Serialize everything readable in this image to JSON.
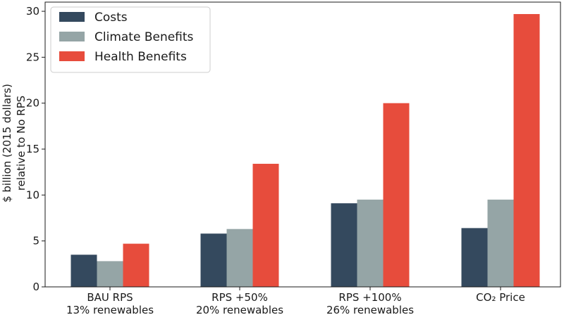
{
  "chart_data": {
    "type": "bar",
    "title": "",
    "xlabel": "",
    "ylabel": [
      "$ billion (2015 dollars)",
      "relative to No RPS"
    ],
    "ylim": [
      0,
      31
    ],
    "yticks": [
      0,
      5,
      10,
      15,
      20,
      25,
      30
    ],
    "grid": false,
    "legend_position": "top-left",
    "categories": [
      [
        "BAU RPS",
        "13% renewables"
      ],
      [
        "RPS +50%",
        "20% renewables"
      ],
      [
        "RPS +100%",
        "26% renewables"
      ],
      [
        "CO₂ Price"
      ]
    ],
    "series": [
      {
        "name": "Costs",
        "color": "#34495e",
        "values": [
          3.5,
          5.8,
          9.1,
          6.4
        ]
      },
      {
        "name": "Climate Benefits",
        "color": "#95a5a6",
        "values": [
          2.8,
          6.3,
          9.5,
          9.5
        ]
      },
      {
        "name": "Health Benefits",
        "color": "#e74c3c",
        "values": [
          4.7,
          13.4,
          20.0,
          29.7
        ]
      }
    ]
  }
}
